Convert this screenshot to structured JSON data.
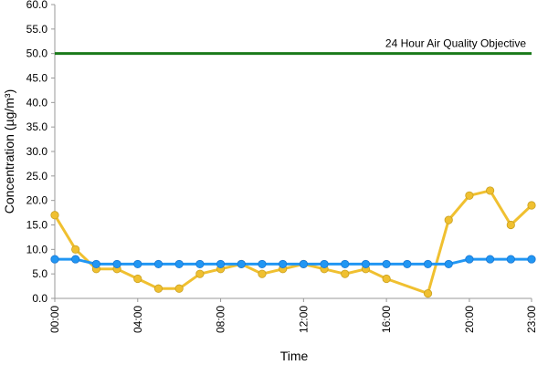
{
  "chart_data": {
    "type": "line",
    "xlabel": "Time",
    "ylabel": "Concentration (µg/m³)",
    "ylim": [
      0,
      60
    ],
    "y_ticks": [
      "0.0",
      "5.0",
      "10.0",
      "15.0",
      "20.0",
      "25.0",
      "30.0",
      "35.0",
      "40.0",
      "45.0",
      "50.0",
      "55.0",
      "60.0"
    ],
    "x_ticks": [
      "00:00",
      "04:00",
      "08:00",
      "12:00",
      "16:00",
      "20:00",
      "23:00"
    ],
    "x_tick_hours": [
      0,
      4,
      8,
      12,
      16,
      20,
      23
    ],
    "x": [
      0,
      1,
      2,
      3,
      4,
      5,
      6,
      7,
      8,
      9,
      10,
      11,
      12,
      13,
      14,
      15,
      16,
      17,
      18,
      19,
      20,
      21,
      22,
      23
    ],
    "grid": false,
    "series": [
      {
        "color": "#f0c030",
        "values": [
          17,
          10,
          6,
          6,
          4,
          2,
          2,
          5,
          6,
          7,
          5,
          6,
          7,
          6,
          5,
          6,
          4,
          null,
          1,
          16,
          21,
          22,
          15,
          19
        ]
      },
      {
        "color": "#2196f3",
        "values": [
          8,
          8,
          7,
          7,
          7,
          7,
          7,
          7,
          7,
          7,
          7,
          7,
          7,
          7,
          7,
          7,
          7,
          7,
          7,
          7,
          8,
          8,
          8,
          8
        ]
      }
    ],
    "objective": {
      "label": "24 Hour Air Quality Objective",
      "value": 50,
      "color": "#1a7a1a"
    }
  }
}
